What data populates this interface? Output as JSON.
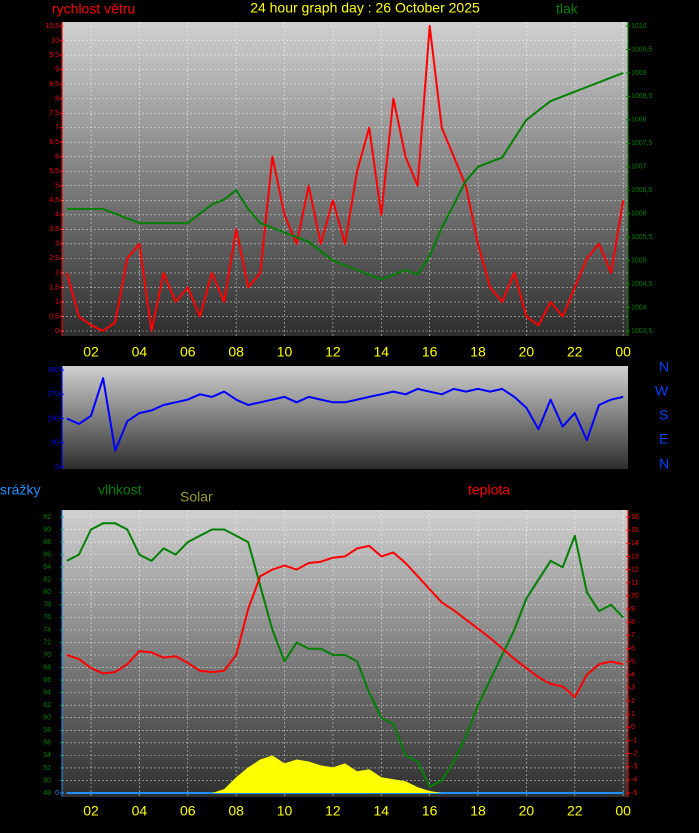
{
  "chart_data": [
    {
      "type": "line",
      "title": "24 hour graph day : 26 October 2025",
      "grid": true,
      "x": [
        1,
        1.5,
        2,
        2.5,
        3,
        3.5,
        4,
        4.5,
        5,
        5.5,
        6,
        6.5,
        7,
        7.5,
        8,
        8.5,
        9,
        9.5,
        10,
        10.5,
        11,
        11.5,
        12,
        12.5,
        13,
        13.5,
        14,
        14.5,
        15,
        15.5,
        16,
        16.5,
        17,
        17.5,
        18,
        18.5,
        19,
        19.5,
        20,
        20.5,
        21,
        21.5,
        22,
        22.5,
        23,
        23.5,
        24
      ],
      "xlim": [
        0.8,
        24.2
      ],
      "xticks": [
        {
          "value": 2,
          "label": "02"
        },
        {
          "value": 4,
          "label": "04"
        },
        {
          "value": 6,
          "label": "06"
        },
        {
          "value": 8,
          "label": "08"
        },
        10,
        12,
        14,
        16,
        18,
        20,
        22,
        {
          "value": 24,
          "label": "00"
        }
      ],
      "ylim": [
        0,
        10.5
      ],
      "yticks": [
        0,
        {
          "value": 0.5,
          "label": "0,5"
        },
        1,
        {
          "value": 1.5,
          "label": "1,5"
        },
        2,
        {
          "value": 2.5,
          "label": "2,5"
        },
        3,
        {
          "value": 3.5,
          "label": "3,5"
        },
        4,
        {
          "value": 4.5,
          "label": "4,5"
        },
        5,
        {
          "value": 5.5,
          "label": "5,5"
        },
        6,
        {
          "value": 6.5,
          "label": "6,5"
        },
        7,
        {
          "value": 7.5,
          "label": "7,5"
        },
        8,
        {
          "value": 8.5,
          "label": "8,5"
        },
        9,
        {
          "value": 9.5,
          "label": "9,5"
        },
        10,
        {
          "value": 10.5,
          "label": "10,5"
        }
      ],
      "y2lim": [
        1003.5,
        1010
      ],
      "y2ticks": [
        {
          "value": 1003.5,
          "label": "1003,5"
        },
        1004,
        {
          "value": 1004.5,
          "label": "1004,5"
        },
        1005,
        {
          "value": 1005.5,
          "label": "1005,5"
        },
        1006,
        {
          "value": 1006.5,
          "label": "1006,5"
        },
        1007,
        {
          "value": 1007.5,
          "label": "1007,5"
        },
        1008,
        {
          "value": 1008.5,
          "label": "1008,5"
        },
        1009,
        {
          "value": 1009.5,
          "label": "1009,5"
        },
        1010
      ],
      "series": [
        {
          "name": "rychlost větru",
          "color": "#ff0000",
          "values": [
            2,
            0.5,
            0.2,
            0,
            0.3,
            2.5,
            3,
            0,
            2,
            1,
            1.5,
            0.5,
            2,
            1,
            3.5,
            1.5,
            2,
            6,
            4,
            3,
            5,
            3,
            4.5,
            3,
            5.5,
            7,
            4,
            8,
            6,
            5,
            10.5,
            7,
            6,
            5,
            3,
            1.5,
            1,
            2,
            0.5,
            0.2,
            1,
            0.5,
            1.5,
            2.5,
            3,
            2,
            4.5
          ]
        },
        {
          "name": "tlak",
          "color": "#008000",
          "axis": "y2",
          "values": [
            1006.1,
            1006.1,
            1006.1,
            1006.1,
            1006.0,
            1005.9,
            1005.8,
            1005.8,
            1005.8,
            1005.8,
            1005.8,
            1006.0,
            1006.2,
            1006.3,
            1006.5,
            1006.1,
            1005.8,
            1005.7,
            1005.6,
            1005.5,
            1005.4,
            1005.2,
            1005.0,
            1004.9,
            1004.8,
            1004.7,
            1004.6,
            1004.7,
            1004.8,
            1004.7,
            1005.1,
            1005.7,
            1006.2,
            1006.7,
            1007.0,
            1007.1,
            1007.2,
            1007.6,
            1008.0,
            1008.2,
            1008.4,
            1008.5,
            1008.6,
            1008.7,
            1008.8,
            1008.9,
            1009.0
          ]
        }
      ]
    },
    {
      "type": "line",
      "compass": [
        "N",
        "W",
        "S",
        "E",
        "N"
      ],
      "x": [
        1,
        1.5,
        2,
        2.5,
        3,
        3.5,
        4,
        4.5,
        5,
        5.5,
        6,
        6.5,
        7,
        7.5,
        8,
        8.5,
        9,
        9.5,
        10,
        10.5,
        11,
        11.5,
        12,
        12.5,
        13,
        13.5,
        14,
        14.5,
        15,
        15.5,
        16,
        16.5,
        17,
        17.5,
        18,
        18.5,
        19,
        19.5,
        20,
        20.5,
        21,
        21.5,
        22,
        22.5,
        23,
        23.5,
        24
      ],
      "xlim": [
        0.8,
        24.2
      ],
      "ylim": [
        0,
        360
      ],
      "yticks": [
        0,
        90,
        180,
        270,
        360
      ],
      "series": [
        {
          "color": "#0000ff",
          "values": [
            180,
            160,
            190,
            330,
            60,
            170,
            200,
            210,
            230,
            240,
            250,
            270,
            260,
            280,
            250,
            230,
            240,
            250,
            260,
            240,
            260,
            250,
            240,
            240,
            250,
            260,
            270,
            280,
            270,
            290,
            280,
            270,
            290,
            280,
            290,
            280,
            290,
            260,
            220,
            140,
            250,
            150,
            200,
            100,
            230,
            250,
            260
          ]
        }
      ]
    },
    {
      "type": "line",
      "grid": true,
      "x": [
        1,
        1.5,
        2,
        2.5,
        3,
        3.5,
        4,
        4.5,
        5,
        5.5,
        6,
        6.5,
        7,
        7.5,
        8,
        8.5,
        9,
        9.5,
        10,
        10.5,
        11,
        11.5,
        12,
        12.5,
        13,
        13.5,
        14,
        14.5,
        15,
        15.5,
        16,
        16.5,
        17,
        17.5,
        18,
        18.5,
        19,
        19.5,
        20,
        20.5,
        21,
        21.5,
        22,
        22.5,
        23,
        23.5,
        24
      ],
      "xlim": [
        0.8,
        24.2
      ],
      "xticks": [
        {
          "value": 2,
          "label": "02"
        },
        {
          "value": 4,
          "label": "04"
        },
        {
          "value": 6,
          "label": "06"
        },
        {
          "value": 8,
          "label": "08"
        },
        10,
        12,
        14,
        16,
        18,
        20,
        22,
        {
          "value": 24,
          "label": "00"
        }
      ],
      "ylim": [
        48,
        92
      ],
      "yticks": [
        48,
        50,
        52,
        54,
        56,
        58,
        60,
        62,
        64,
        66,
        68,
        70,
        72,
        74,
        76,
        78,
        80,
        82,
        84,
        86,
        88,
        90,
        92
      ],
      "y2lim": [
        -5,
        16
      ],
      "y2ticks": [
        -5,
        -4,
        -3,
        -2,
        -1,
        0,
        1,
        2,
        3,
        4,
        5,
        6,
        7,
        8,
        9,
        10,
        11,
        12,
        13,
        14,
        15,
        16
      ],
      "y3lim": [
        0,
        1400
      ],
      "y4lim": [
        0,
        1
      ],
      "y4ticks": [
        0
      ],
      "series": [
        {
          "name": "srážky",
          "color": "#1e90ff",
          "axis": "y4",
          "values": [
            0,
            0,
            0,
            0,
            0,
            0,
            0,
            0,
            0,
            0,
            0,
            0,
            0,
            0,
            0,
            0,
            0,
            0,
            0,
            0,
            0,
            0,
            0,
            0,
            0,
            0,
            0,
            0,
            0,
            0,
            0,
            0,
            0,
            0,
            0,
            0,
            0,
            0,
            0,
            0,
            0,
            0,
            0,
            0,
            0,
            0,
            0
          ]
        },
        {
          "name": "vlhkost",
          "color": "#008000",
          "values": [
            85,
            86,
            90,
            91,
            91,
            90,
            86,
            85,
            87,
            86,
            88,
            89,
            90,
            90,
            89,
            88,
            81,
            74,
            69,
            72,
            71,
            71,
            70,
            70,
            69,
            64,
            60,
            59,
            54,
            53,
            49,
            50,
            53,
            57,
            62,
            66,
            70,
            74,
            79,
            82,
            85,
            84,
            89,
            80,
            77,
            78,
            76
          ]
        },
        {
          "name": "Solar",
          "color": "#ffff00",
          "axis": "y3",
          "style": "area",
          "values": [
            0,
            0,
            0,
            0,
            0,
            0,
            0,
            0,
            0,
            0,
            0,
            0,
            0,
            20,
            80,
            130,
            170,
            190,
            150,
            170,
            160,
            140,
            130,
            150,
            110,
            120,
            80,
            70,
            60,
            30,
            10,
            0,
            0,
            0,
            0,
            0,
            0,
            0,
            0,
            0,
            0,
            0,
            0,
            0,
            0,
            0,
            0
          ]
        },
        {
          "name": "teplota",
          "color": "#ff0000",
          "axis": "y2",
          "values": [
            5.5,
            5.2,
            4.5,
            4.1,
            4.2,
            4.8,
            5.8,
            5.7,
            5.3,
            5.4,
            4.9,
            4.3,
            4.2,
            4.3,
            5.5,
            9,
            11.5,
            12,
            12.3,
            12,
            12.5,
            12.6,
            12.9,
            13,
            13.6,
            13.8,
            13,
            13.3,
            12.5,
            11.5,
            10.5,
            9.5,
            8.9,
            8.2,
            7.5,
            6.8,
            6,
            5.2,
            4.5,
            3.8,
            3.3,
            3.1,
            2.3,
            4,
            4.8,
            5,
            4.8
          ]
        }
      ]
    }
  ]
}
